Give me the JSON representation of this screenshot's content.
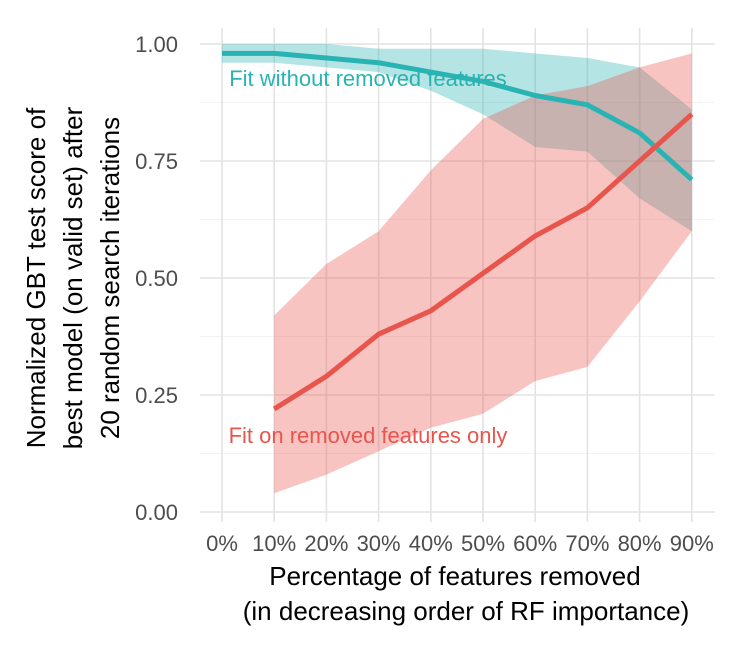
{
  "chart_data": {
    "type": "line",
    "x_categories": [
      "0%",
      "10%",
      "20%",
      "30%",
      "40%",
      "50%",
      "60%",
      "70%",
      "80%",
      "90%"
    ],
    "x_values": [
      0,
      10,
      20,
      30,
      40,
      50,
      60,
      70,
      80,
      90
    ],
    "ylim": [
      0,
      1.05
    ],
    "y_ticks": [
      0.0,
      0.25,
      0.5,
      0.75,
      1.0
    ],
    "y_tick_labels": [
      "0.00",
      "0.25",
      "0.50",
      "0.75",
      "1.00"
    ],
    "xlabel_line1": "Percentage of features removed",
    "xlabel_line2": "(in decreasing order of RF importance)",
    "ylabel_line1": "Normalized GBT test score of",
    "ylabel_line2": "best model (on valid set) after",
    "ylabel_line3": "20 random search iterations",
    "grid": true,
    "series": [
      {
        "name": "Fit without removed features",
        "color": "#2ab3b3",
        "x": [
          0,
          10,
          20,
          30,
          40,
          50,
          60,
          70,
          80,
          90
        ],
        "values": [
          0.98,
          0.98,
          0.97,
          0.96,
          0.94,
          0.92,
          0.89,
          0.87,
          0.81,
          0.71
        ],
        "lower": [
          0.96,
          0.96,
          0.95,
          0.94,
          0.9,
          0.85,
          0.78,
          0.77,
          0.67,
          0.6
        ],
        "upper": [
          1.0,
          1.0,
          1.0,
          0.99,
          0.99,
          0.99,
          0.98,
          0.97,
          0.95,
          0.86
        ]
      },
      {
        "name": "Fit on removed features only",
        "color": "#e8554c",
        "x": [
          10,
          20,
          30,
          40,
          50,
          60,
          70,
          80,
          90
        ],
        "values": [
          0.22,
          0.29,
          0.38,
          0.43,
          0.51,
          0.59,
          0.65,
          0.75,
          0.85
        ],
        "lower": [
          0.04,
          0.08,
          0.13,
          0.18,
          0.21,
          0.28,
          0.31,
          0.45,
          0.6
        ],
        "upper": [
          0.42,
          0.53,
          0.6,
          0.73,
          0.84,
          0.89,
          0.91,
          0.95,
          0.98
        ]
      }
    ]
  }
}
